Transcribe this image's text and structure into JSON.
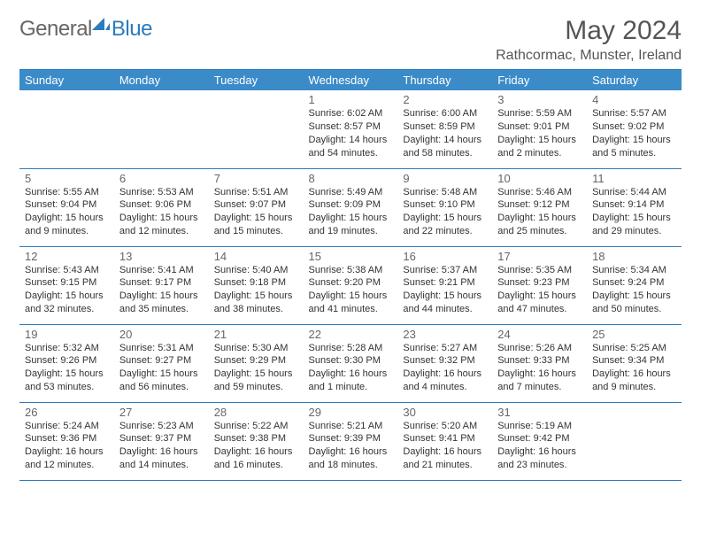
{
  "logo": {
    "part1": "General",
    "part2": "Blue"
  },
  "title": "May 2024",
  "location": "Rathcormac, Munster, Ireland",
  "colors": {
    "header_bg": "#3b8bc9",
    "header_text": "#ffffff",
    "border": "#2b7bbd",
    "daynum": "#666666",
    "body_text": "#333333",
    "logo_gray": "#666666",
    "logo_blue": "#2b7bbd"
  },
  "day_headers": [
    "Sunday",
    "Monday",
    "Tuesday",
    "Wednesday",
    "Thursday",
    "Friday",
    "Saturday"
  ],
  "weeks": [
    [
      null,
      null,
      null,
      {
        "n": "1",
        "sunrise": "6:02 AM",
        "sunset": "8:57 PM",
        "daylight": "14 hours and 54 minutes."
      },
      {
        "n": "2",
        "sunrise": "6:00 AM",
        "sunset": "8:59 PM",
        "daylight": "14 hours and 58 minutes."
      },
      {
        "n": "3",
        "sunrise": "5:59 AM",
        "sunset": "9:01 PM",
        "daylight": "15 hours and 2 minutes."
      },
      {
        "n": "4",
        "sunrise": "5:57 AM",
        "sunset": "9:02 PM",
        "daylight": "15 hours and 5 minutes."
      }
    ],
    [
      {
        "n": "5",
        "sunrise": "5:55 AM",
        "sunset": "9:04 PM",
        "daylight": "15 hours and 9 minutes."
      },
      {
        "n": "6",
        "sunrise": "5:53 AM",
        "sunset": "9:06 PM",
        "daylight": "15 hours and 12 minutes."
      },
      {
        "n": "7",
        "sunrise": "5:51 AM",
        "sunset": "9:07 PM",
        "daylight": "15 hours and 15 minutes."
      },
      {
        "n": "8",
        "sunrise": "5:49 AM",
        "sunset": "9:09 PM",
        "daylight": "15 hours and 19 minutes."
      },
      {
        "n": "9",
        "sunrise": "5:48 AM",
        "sunset": "9:10 PM",
        "daylight": "15 hours and 22 minutes."
      },
      {
        "n": "10",
        "sunrise": "5:46 AM",
        "sunset": "9:12 PM",
        "daylight": "15 hours and 25 minutes."
      },
      {
        "n": "11",
        "sunrise": "5:44 AM",
        "sunset": "9:14 PM",
        "daylight": "15 hours and 29 minutes."
      }
    ],
    [
      {
        "n": "12",
        "sunrise": "5:43 AM",
        "sunset": "9:15 PM",
        "daylight": "15 hours and 32 minutes."
      },
      {
        "n": "13",
        "sunrise": "5:41 AM",
        "sunset": "9:17 PM",
        "daylight": "15 hours and 35 minutes."
      },
      {
        "n": "14",
        "sunrise": "5:40 AM",
        "sunset": "9:18 PM",
        "daylight": "15 hours and 38 minutes."
      },
      {
        "n": "15",
        "sunrise": "5:38 AM",
        "sunset": "9:20 PM",
        "daylight": "15 hours and 41 minutes."
      },
      {
        "n": "16",
        "sunrise": "5:37 AM",
        "sunset": "9:21 PM",
        "daylight": "15 hours and 44 minutes."
      },
      {
        "n": "17",
        "sunrise": "5:35 AM",
        "sunset": "9:23 PM",
        "daylight": "15 hours and 47 minutes."
      },
      {
        "n": "18",
        "sunrise": "5:34 AM",
        "sunset": "9:24 PM",
        "daylight": "15 hours and 50 minutes."
      }
    ],
    [
      {
        "n": "19",
        "sunrise": "5:32 AM",
        "sunset": "9:26 PM",
        "daylight": "15 hours and 53 minutes."
      },
      {
        "n": "20",
        "sunrise": "5:31 AM",
        "sunset": "9:27 PM",
        "daylight": "15 hours and 56 minutes."
      },
      {
        "n": "21",
        "sunrise": "5:30 AM",
        "sunset": "9:29 PM",
        "daylight": "15 hours and 59 minutes."
      },
      {
        "n": "22",
        "sunrise": "5:28 AM",
        "sunset": "9:30 PM",
        "daylight": "16 hours and 1 minute."
      },
      {
        "n": "23",
        "sunrise": "5:27 AM",
        "sunset": "9:32 PM",
        "daylight": "16 hours and 4 minutes."
      },
      {
        "n": "24",
        "sunrise": "5:26 AM",
        "sunset": "9:33 PM",
        "daylight": "16 hours and 7 minutes."
      },
      {
        "n": "25",
        "sunrise": "5:25 AM",
        "sunset": "9:34 PM",
        "daylight": "16 hours and 9 minutes."
      }
    ],
    [
      {
        "n": "26",
        "sunrise": "5:24 AM",
        "sunset": "9:36 PM",
        "daylight": "16 hours and 12 minutes."
      },
      {
        "n": "27",
        "sunrise": "5:23 AM",
        "sunset": "9:37 PM",
        "daylight": "16 hours and 14 minutes."
      },
      {
        "n": "28",
        "sunrise": "5:22 AM",
        "sunset": "9:38 PM",
        "daylight": "16 hours and 16 minutes."
      },
      {
        "n": "29",
        "sunrise": "5:21 AM",
        "sunset": "9:39 PM",
        "daylight": "16 hours and 18 minutes."
      },
      {
        "n": "30",
        "sunrise": "5:20 AM",
        "sunset": "9:41 PM",
        "daylight": "16 hours and 21 minutes."
      },
      {
        "n": "31",
        "sunrise": "5:19 AM",
        "sunset": "9:42 PM",
        "daylight": "16 hours and 23 minutes."
      },
      null
    ]
  ],
  "labels": {
    "sunrise": "Sunrise:",
    "sunset": "Sunset:",
    "daylight": "Daylight:"
  }
}
